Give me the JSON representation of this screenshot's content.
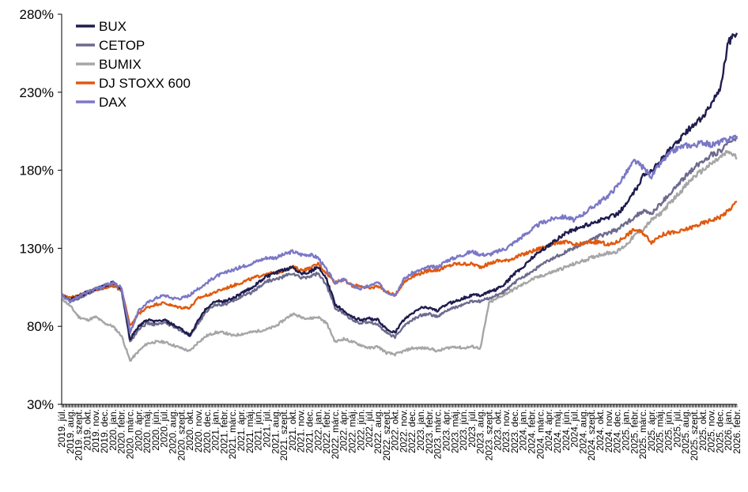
{
  "chart_data": {
    "type": "line",
    "title": "",
    "xlabel": "",
    "ylabel": "",
    "ylim": [
      30,
      280
    ],
    "y_ticks": [
      "30%",
      "80%",
      "130%",
      "180%",
      "230%",
      "280%"
    ],
    "y_tick_values": [
      30,
      80,
      130,
      180,
      230,
      280
    ],
    "grid": false,
    "legend_position": "top-left",
    "x": [
      "2019. júl.",
      "2019. aug.",
      "2019. szept.",
      "2019. okt.",
      "2019. nov.",
      "2019. dec.",
      "2020. jan.",
      "2020. febr.",
      "2020. márc.",
      "2020. ápr.",
      "2020. máj.",
      "2020. jún.",
      "2020. júl.",
      "2020. aug.",
      "2020. szept.",
      "2020. okt.",
      "2020. nov.",
      "2020. dec.",
      "2021. jan.",
      "2021. febr.",
      "2021. márc.",
      "2021. ápr.",
      "2021. máj.",
      "2021. jún.",
      "2021. júl.",
      "2021. aug.",
      "2021. szept.",
      "2021. okt.",
      "2021. nov.",
      "2021. dec.",
      "2022. jan.",
      "2022. febr.",
      "2022. márc.",
      "2022. ápr.",
      "2022. máj.",
      "2022. jún.",
      "2022. júl.",
      "2022. aug.",
      "2022. szept.",
      "2022. okt.",
      "2022. nov.",
      "2022. dec.",
      "2023. jan.",
      "2023. febr.",
      "2023. márc.",
      "2023. ápr.",
      "2023. máj.",
      "2023. jún.",
      "2023. júl.",
      "2023. aug.",
      "2023. szept.",
      "2023. okt.",
      "2023. nov.",
      "2023. dec.",
      "2024. jan.",
      "2024. febr.",
      "2024. márc.",
      "2024. ápr.",
      "2024. máj.",
      "2024. jún.",
      "2024. júl.",
      "2024. aug.",
      "2024. szept.",
      "2024. okt.",
      "2024. nov.",
      "2024. dec.",
      "2025. jan.",
      "2025. febr.",
      "2025. márc.",
      "2025. ápr.",
      "2025. máj.",
      "2025. jún.",
      "2025. júl.",
      "2025. aug.",
      "2025. szept.",
      "2025. okt.",
      "2025. nov.",
      "2025. dec.",
      "2026. jan.",
      "2026. febr."
    ],
    "series": [
      {
        "name": "BUX",
        "color": "#1f1d4e",
        "values": [
          100,
          97,
          99,
          102,
          104,
          106,
          108,
          104,
          72,
          80,
          84,
          83,
          84,
          81,
          78,
          74,
          84,
          92,
          96,
          96,
          98,
          101,
          104,
          108,
          112,
          114,
          116,
          118,
          114,
          115,
          118,
          110,
          94,
          90,
          86,
          84,
          85,
          84,
          78,
          76,
          84,
          88,
          92,
          92,
          90,
          94,
          96,
          98,
          100,
          100,
          102,
          104,
          108,
          114,
          118,
          124,
          128,
          132,
          136,
          140,
          142,
          144,
          146,
          148,
          150,
          152,
          158,
          166,
          176,
          180,
          186,
          192,
          198,
          204,
          210,
          214,
          222,
          232,
          262,
          268
        ]
      },
      {
        "name": "CETOP",
        "color": "#6d6a8e",
        "values": [
          100,
          96,
          98,
          101,
          103,
          105,
          106,
          103,
          70,
          78,
          82,
          81,
          82,
          80,
          77,
          74,
          82,
          90,
          94,
          94,
          96,
          99,
          101,
          105,
          109,
          110,
          112,
          114,
          111,
          112,
          114,
          106,
          92,
          88,
          84,
          82,
          83,
          81,
          76,
          73,
          80,
          84,
          87,
          88,
          86,
          90,
          92,
          94,
          96,
          96,
          98,
          100,
          103,
          108,
          112,
          115,
          119,
          122,
          125,
          128,
          130,
          133,
          136,
          138,
          140,
          142,
          146,
          150,
          154,
          152,
          158,
          164,
          170,
          176,
          182,
          186,
          190,
          192,
          198,
          200
        ]
      },
      {
        "name": "BUMIX",
        "color": "#a6a6a6",
        "values": [
          98,
          93,
          86,
          84,
          86,
          82,
          80,
          74,
          58,
          64,
          69,
          70,
          70,
          68,
          66,
          64,
          70,
          74,
          76,
          76,
          74,
          75,
          76,
          77,
          78,
          80,
          84,
          88,
          86,
          85,
          86,
          82,
          70,
          72,
          70,
          68,
          66,
          67,
          63,
          62,
          64,
          66,
          66,
          66,
          64,
          66,
          67,
          66,
          67,
          66,
          95,
          98,
          101,
          104,
          107,
          110,
          112,
          114,
          116,
          118,
          120,
          122,
          124,
          126,
          127,
          128,
          132,
          138,
          142,
          148,
          152,
          158,
          164,
          170,
          176,
          180,
          184,
          188,
          192,
          188
        ]
      },
      {
        "name": "DJ STOXX 600",
        "color": "#e05a10",
        "values": [
          100,
          98,
          100,
          102,
          104,
          105,
          106,
          104,
          80,
          88,
          92,
          94,
          95,
          93,
          92,
          92,
          98,
          100,
          102,
          104,
          106,
          108,
          110,
          112,
          114,
          114,
          116,
          118,
          116,
          117,
          120,
          114,
          108,
          110,
          106,
          106,
          104,
          106,
          102,
          100,
          108,
          112,
          114,
          116,
          116,
          118,
          120,
          120,
          120,
          118,
          120,
          122,
          122,
          124,
          126,
          128,
          130,
          132,
          134,
          134,
          132,
          133,
          134,
          134,
          132,
          134,
          138,
          142,
          140,
          134,
          138,
          140,
          140,
          142,
          144,
          146,
          148,
          150,
          154,
          160
        ]
      },
      {
        "name": "DAX",
        "color": "#7b78c6",
        "values": [
          100,
          96,
          99,
          102,
          104,
          106,
          108,
          105,
          76,
          90,
          95,
          98,
          100,
          98,
          98,
          100,
          104,
          108,
          112,
          114,
          116,
          118,
          120,
          122,
          124,
          124,
          126,
          128,
          126,
          126,
          124,
          116,
          108,
          110,
          106,
          104,
          106,
          108,
          102,
          100,
          110,
          114,
          116,
          118,
          118,
          122,
          124,
          126,
          128,
          126,
          126,
          128,
          130,
          134,
          138,
          142,
          146,
          148,
          150,
          150,
          148,
          152,
          156,
          160,
          164,
          170,
          178,
          186,
          182,
          176,
          184,
          190,
          194,
          196,
          196,
          198,
          196,
          198,
          200,
          202
        ]
      }
    ]
  }
}
